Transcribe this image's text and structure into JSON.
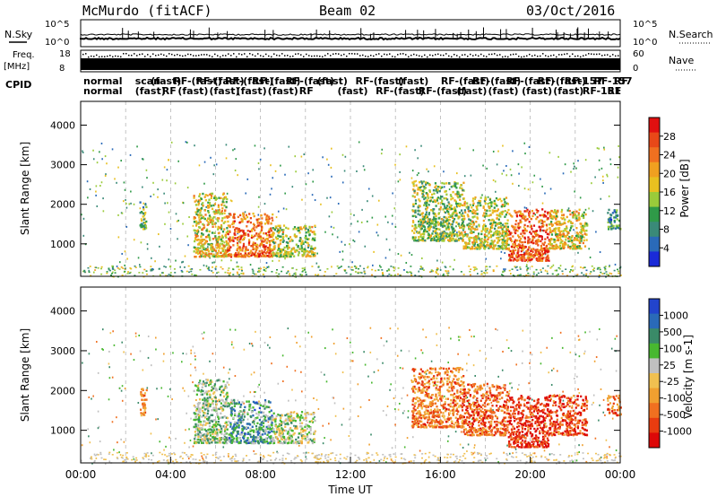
{
  "header": {
    "station": "McMurdo (fitACF)",
    "beam": "Beam 02",
    "date": "03/Oct/2016"
  },
  "strip_labels": {
    "nsky": "N.Sky",
    "nsearch": "N.Search",
    "freq_line1": "Freq.",
    "freq_line2": "[MHz]",
    "nave": "Nave",
    "cpid": "CPID",
    "nsky_ticks": [
      "10^5",
      "10^0"
    ],
    "nsearch_ticks": [
      "10^5",
      "10^0"
    ],
    "freq_ticks": [
      "18",
      "8"
    ],
    "nave_ticks": [
      "60",
      "0"
    ]
  },
  "cpid_labels": [
    {
      "text": "normal",
      "x_hour": 0.0,
      "row": 0
    },
    {
      "text": "normal",
      "x_hour": 0.0,
      "row": 1
    },
    {
      "text": "scan",
      "x_hour": 2.3,
      "row": 0
    },
    {
      "text": "(fast)",
      "x_hour": 2.3,
      "row": 1
    },
    {
      "text": "(fast)",
      "x_hour": 3.0,
      "row": 0
    },
    {
      "text": "RF",
      "x_hour": 3.5,
      "row": 1
    },
    {
      "text": "RF-(fast)",
      "x_hour": 4.0,
      "row": 0
    },
    {
      "text": "(fast)",
      "x_hour": 4.2,
      "row": 1
    },
    {
      "text": "RF-(fast)",
      "x_hour": 5.0,
      "row": 0
    },
    {
      "text": "(fast)",
      "x_hour": 5.6,
      "row": 1
    },
    {
      "text": "RF-(fast)",
      "x_hour": 6.3,
      "row": 0
    },
    {
      "text": "(fast)",
      "x_hour": 6.8,
      "row": 1
    },
    {
      "text": "RF-(fast)",
      "x_hour": 7.5,
      "row": 0
    },
    {
      "text": "(fast)",
      "x_hour": 8.2,
      "row": 1
    },
    {
      "text": "RF-(fast)",
      "x_hour": 9.0,
      "row": 0
    },
    {
      "text": "RF",
      "x_hour": 9.6,
      "row": 1
    },
    {
      "text": "(fast)",
      "x_hour": 10.4,
      "row": 0
    },
    {
      "text": "(fast)",
      "x_hour": 11.3,
      "row": 1
    },
    {
      "text": "RF-(fast)",
      "x_hour": 12.1,
      "row": 0
    },
    {
      "text": "RF-(fast)",
      "x_hour": 13.0,
      "row": 1
    },
    {
      "text": "(fast)",
      "x_hour": 14.0,
      "row": 0
    },
    {
      "text": "RF-(fast)",
      "x_hour": 14.9,
      "row": 1
    },
    {
      "text": "RF-(fast)",
      "x_hour": 15.9,
      "row": 0
    },
    {
      "text": "(fast)",
      "x_hour": 16.6,
      "row": 1
    },
    {
      "text": "RF-(fast)",
      "x_hour": 17.3,
      "row": 0
    },
    {
      "text": "(fast)",
      "x_hour": 18.0,
      "row": 1
    },
    {
      "text": "RF-(fast)",
      "x_hour": 18.8,
      "row": 0
    },
    {
      "text": "(fast)",
      "x_hour": 19.5,
      "row": 1
    },
    {
      "text": "RF-(fast)",
      "x_hour": 20.2,
      "row": 0
    },
    {
      "text": "(fast)",
      "x_hour": 20.9,
      "row": 1
    },
    {
      "text": "RF-157",
      "x_hour": 21.4,
      "row": 0
    },
    {
      "text": "RF-151",
      "x_hour": 22.2,
      "row": 1
    },
    {
      "text": "RF-157",
      "x_hour": 22.7,
      "row": 0
    },
    {
      "text": "RF",
      "x_hour": 23.3,
      "row": 1
    },
    {
      "text": "RF",
      "x_hour": 23.6,
      "row": 0
    }
  ],
  "chart_data": [
    {
      "type": "heatmap",
      "panel": "power",
      "xlabel": "",
      "ylabel": "Slant Range [km]",
      "xlim": [
        0,
        24
      ],
      "ylim": [
        180,
        4600
      ],
      "yticks": [
        1000,
        2000,
        3000,
        4000
      ],
      "colorbar": {
        "label": "Power [dB]",
        "ticks": [
          4,
          8,
          12,
          16,
          20,
          24,
          28
        ],
        "colors": [
          "#1a2ad8",
          "#2a6ab8",
          "#3a8a78",
          "#2f9a48",
          "#9acb3a",
          "#e8c020",
          "#f0a020",
          "#f07020",
          "#e84818",
          "#e01010"
        ]
      },
      "echo_regions": [
        {
          "t0": 5.0,
          "t1": 6.5,
          "r0": 700,
          "r1": 2300,
          "value": 18
        },
        {
          "t0": 6.5,
          "t1": 8.5,
          "r0": 700,
          "r1": 1800,
          "value": 24
        },
        {
          "t0": 8.5,
          "t1": 10.4,
          "r0": 700,
          "r1": 1500,
          "value": 16
        },
        {
          "t0": 2.6,
          "t1": 2.9,
          "r0": 1400,
          "r1": 2100,
          "value": 12
        },
        {
          "t0": 14.7,
          "t1": 17.0,
          "r0": 1100,
          "r1": 2600,
          "value": 14
        },
        {
          "t0": 17.0,
          "t1": 19.0,
          "r0": 900,
          "r1": 2200,
          "value": 16
        },
        {
          "t0": 19.0,
          "t1": 20.8,
          "r0": 600,
          "r1": 1900,
          "value": 26
        },
        {
          "t0": 20.8,
          "t1": 22.5,
          "r0": 900,
          "r1": 1900,
          "value": 18
        },
        {
          "t0": 23.4,
          "t1": 24.0,
          "r0": 1400,
          "r1": 1900,
          "value": 8
        }
      ]
    },
    {
      "type": "heatmap",
      "panel": "velocity",
      "xlabel": "Time UT",
      "ylabel": "Slant Range [km]",
      "xlim": [
        0,
        24
      ],
      "ylim": [
        180,
        4600
      ],
      "xticks": [
        "00:00",
        "04:00",
        "08:00",
        "12:00",
        "16:00",
        "20:00",
        "00:00"
      ],
      "yticks": [
        1000,
        2000,
        3000,
        4000
      ],
      "colorbar": {
        "label": "Velocity [m s-1]",
        "ticks": [
          1000,
          500,
          100,
          25,
          -25,
          -100,
          -500,
          -1000
        ],
        "colors": [
          "#2244cc",
          "#2a6ab8",
          "#3a8a68",
          "#48b830",
          "#c0c0c0",
          "#f0c050",
          "#f0a030",
          "#f07020",
          "#e83c10",
          "#dd0808"
        ]
      },
      "echo_regions": [
        {
          "t0": 5.0,
          "t1": 6.5,
          "r0": 700,
          "r1": 2300,
          "value": 150
        },
        {
          "t0": 6.5,
          "t1": 8.5,
          "r0": 700,
          "r1": 1800,
          "value": 300
        },
        {
          "t0": 8.5,
          "t1": 10.4,
          "r0": 700,
          "r1": 1500,
          "value": 80
        },
        {
          "t0": 2.6,
          "t1": 2.9,
          "r0": 1400,
          "r1": 2100,
          "value": -300
        },
        {
          "t0": 14.7,
          "t1": 17.0,
          "r0": 1100,
          "r1": 2600,
          "value": -300
        },
        {
          "t0": 17.0,
          "t1": 19.0,
          "r0": 900,
          "r1": 2200,
          "value": -400
        },
        {
          "t0": 19.0,
          "t1": 20.8,
          "r0": 600,
          "r1": 1900,
          "value": -500
        },
        {
          "t0": 20.8,
          "t1": 22.5,
          "r0": 900,
          "r1": 1900,
          "value": -450
        },
        {
          "t0": 23.4,
          "t1": 24.0,
          "r0": 1400,
          "r1": 1900,
          "value": -300
        }
      ]
    }
  ]
}
